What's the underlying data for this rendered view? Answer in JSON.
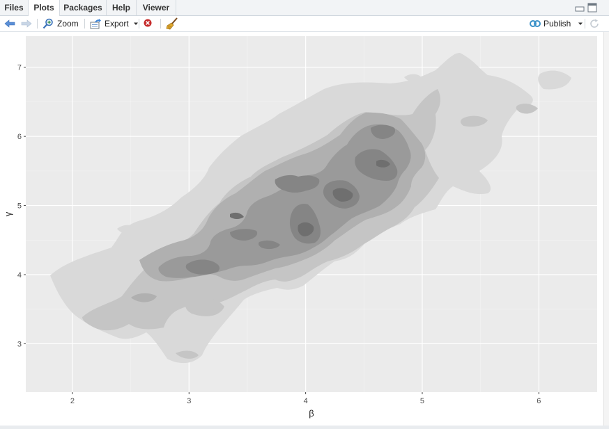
{
  "tabs": [
    {
      "label": "Files",
      "active": false
    },
    {
      "label": "Plots",
      "active": true
    },
    {
      "label": "Packages",
      "active": false
    },
    {
      "label": "Help",
      "active": false
    },
    {
      "label": "Viewer",
      "active": false
    }
  ],
  "toolbar": {
    "zoom_label": "Zoom",
    "export_label": "Export",
    "publish_label": "Publish"
  },
  "icons": {
    "back": "arrow-left-icon",
    "forward": "arrow-right-icon",
    "zoom": "magnifier-icon",
    "export": "export-icon",
    "remove": "remove-plot-icon",
    "clear": "broom-icon",
    "publish": "publish-icon",
    "refresh": "refresh-icon",
    "minimize": "minimize-icon",
    "maximize": "maximize-icon"
  },
  "colors": {
    "panel_bg": "#ebebeb",
    "grid": "#ffffff",
    "level1": "#d9d9d9",
    "level2": "#c5c5c5",
    "level3": "#b0b0b0",
    "level4": "#9a9a9a",
    "level5": "#858585",
    "level6": "#6f6f6f"
  },
  "chart_data": {
    "type": "density-contour",
    "xlabel": "β",
    "ylabel": "γ",
    "xlim": [
      1.6,
      6.5
    ],
    "ylim": [
      2.3,
      7.45
    ],
    "x_ticks": [
      2,
      3,
      4,
      5,
      6
    ],
    "y_ticks": [
      3,
      4,
      5,
      6,
      7
    ],
    "grid": true,
    "legend": "none",
    "density_peaks": [
      {
        "beta": 4.35,
        "gamma": 5.2,
        "level": 6
      },
      {
        "beta": 4.0,
        "gamma": 4.75,
        "level": 5
      },
      {
        "beta": 4.7,
        "gamma": 5.6,
        "level": 5
      },
      {
        "beta": 4.8,
        "gamma": 6.05,
        "level": 4
      },
      {
        "beta": 3.9,
        "gamma": 5.3,
        "level": 4
      },
      {
        "beta": 3.45,
        "gamma": 4.85,
        "level": 3
      },
      {
        "beta": 3.25,
        "gamma": 4.5,
        "level": 3
      },
      {
        "beta": 2.7,
        "gamma": 4.1,
        "level": 3
      },
      {
        "beta": 3.05,
        "gamma": 4.15,
        "level": 3
      }
    ]
  }
}
